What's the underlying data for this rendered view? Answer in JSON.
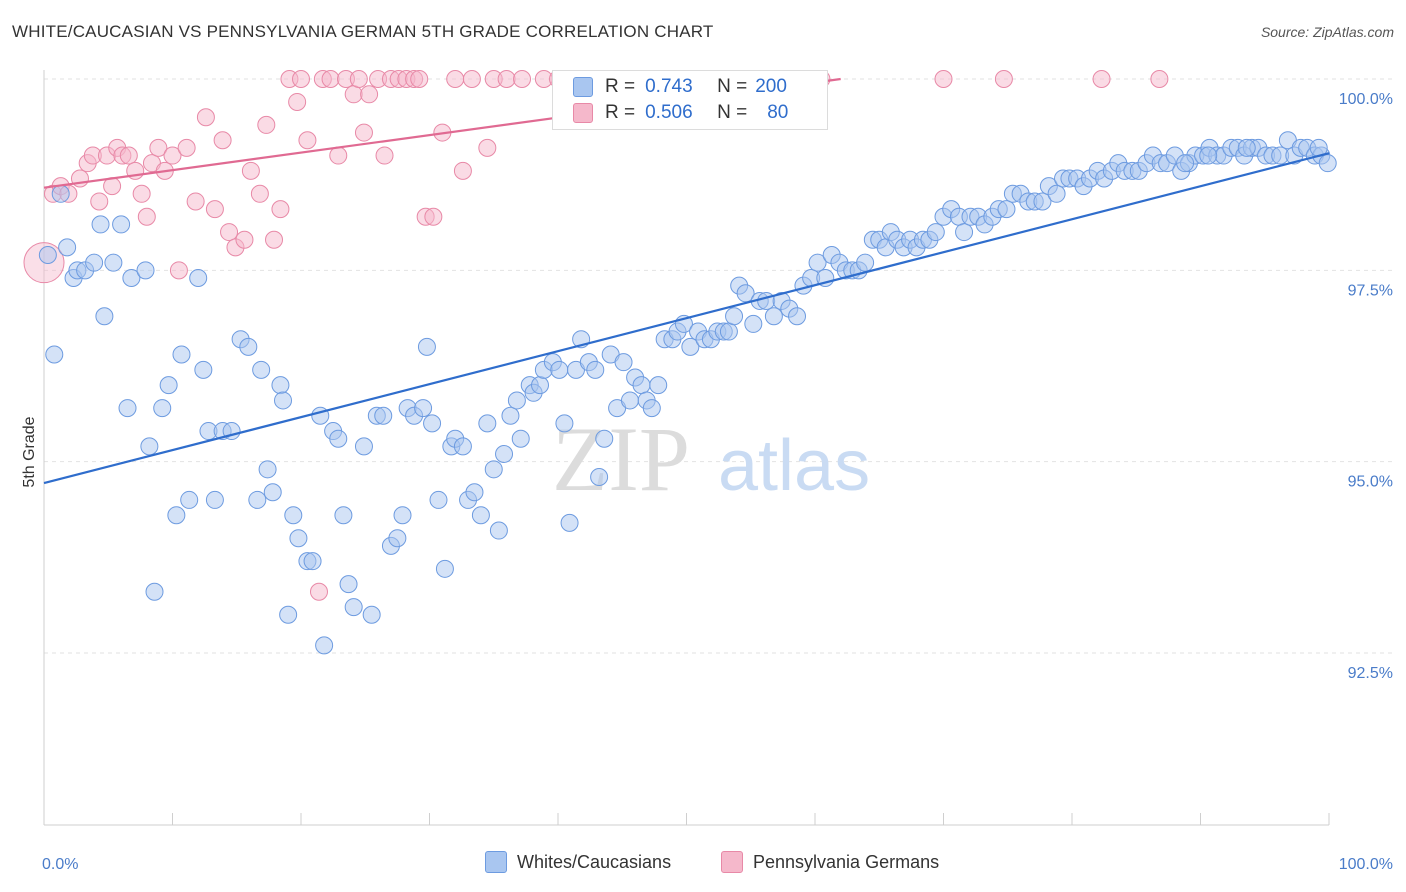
{
  "header": {
    "title": "WHITE/CAUCASIAN VS PENNSYLVANIA GERMAN 5TH GRADE CORRELATION CHART",
    "source": "Source: ZipAtlas.com"
  },
  "watermark": {
    "zip": "ZIP",
    "atlas": "atlas"
  },
  "legend": {
    "r_label": "R =",
    "n_label": "N =",
    "rows": [
      {
        "r": "0.743",
        "n": "200",
        "color": "#a9c6f0",
        "border": "#6d9be0"
      },
      {
        "r": "0.506",
        "n": "80",
        "color": "#f5b8cb",
        "border": "#e889a7"
      }
    ]
  },
  "bottom_legend": [
    {
      "label": "Whites/Caucasians",
      "color": "#a9c6f0",
      "border": "#6d9be0"
    },
    {
      "label": "Pennsylvania Germans",
      "color": "#f5b8cb",
      "border": "#e889a7"
    }
  ],
  "chart_data": {
    "type": "scatter",
    "title": "WHITE/CAUCASIAN VS PENNSYLVANIA GERMAN 5TH GRADE CORRELATION CHART",
    "xlabel": "",
    "ylabel": "5th Grade",
    "xlim": [
      0,
      100
    ],
    "ylim": [
      90.0,
      100.5
    ],
    "x_ticks": [
      {
        "value": 0,
        "label": "0.0%"
      },
      {
        "value": 100,
        "label": "100.0%"
      }
    ],
    "y_ticks": [
      {
        "value": 92.5,
        "label": "92.5%"
      },
      {
        "value": 95.0,
        "label": "95.0%"
      },
      {
        "value": 97.5,
        "label": "97.5%"
      },
      {
        "value": 100.0,
        "label": "100.0%"
      }
    ],
    "grid": true,
    "series": [
      {
        "name": "Whites/Caucasians",
        "color": "#a9c6f0",
        "stroke": "#6d9be0",
        "line_color": "#2f6dcc",
        "trend": [
          [
            0,
            94.72
          ],
          [
            100,
            99.03
          ]
        ],
        "points": [
          [
            0.3,
            97.7
          ],
          [
            0.8,
            96.4
          ],
          [
            1.3,
            98.5
          ],
          [
            1.8,
            97.8
          ],
          [
            2.3,
            97.4
          ],
          [
            2.6,
            97.5
          ],
          [
            3.2,
            97.5
          ],
          [
            3.9,
            97.6
          ],
          [
            4.4,
            98.1
          ],
          [
            4.7,
            96.9
          ],
          [
            5.4,
            97.6
          ],
          [
            6.0,
            98.1
          ],
          [
            6.5,
            95.7
          ],
          [
            6.8,
            97.4
          ],
          [
            7.9,
            97.5
          ],
          [
            8.2,
            95.2
          ],
          [
            8.6,
            93.3
          ],
          [
            9.2,
            95.7
          ],
          [
            9.7,
            96.0
          ],
          [
            10.3,
            94.3
          ],
          [
            10.7,
            96.4
          ],
          [
            11.3,
            94.5
          ],
          [
            12.0,
            97.4
          ],
          [
            12.4,
            96.2
          ],
          [
            12.8,
            95.4
          ],
          [
            13.3,
            94.5
          ],
          [
            13.9,
            95.4
          ],
          [
            14.6,
            95.4
          ],
          [
            15.3,
            96.6
          ],
          [
            15.9,
            96.5
          ],
          [
            16.6,
            94.5
          ],
          [
            16.9,
            96.2
          ],
          [
            17.4,
            94.9
          ],
          [
            17.8,
            94.6
          ],
          [
            18.4,
            96.0
          ],
          [
            18.6,
            95.8
          ],
          [
            19.0,
            93.0
          ],
          [
            19.4,
            94.3
          ],
          [
            19.8,
            94.0
          ],
          [
            20.5,
            93.7
          ],
          [
            20.9,
            93.7
          ],
          [
            21.5,
            95.6
          ],
          [
            21.8,
            92.6
          ],
          [
            22.5,
            95.4
          ],
          [
            22.9,
            95.3
          ],
          [
            23.3,
            94.3
          ],
          [
            23.7,
            93.4
          ],
          [
            24.1,
            93.1
          ],
          [
            24.9,
            95.2
          ],
          [
            25.5,
            93.0
          ],
          [
            25.9,
            95.6
          ],
          [
            26.4,
            95.6
          ],
          [
            27.0,
            93.9
          ],
          [
            27.5,
            94.0
          ],
          [
            27.9,
            94.3
          ],
          [
            28.3,
            95.7
          ],
          [
            28.8,
            95.6
          ],
          [
            29.5,
            95.7
          ],
          [
            29.8,
            96.5
          ],
          [
            30.2,
            95.5
          ],
          [
            30.7,
            94.5
          ],
          [
            31.2,
            93.6
          ],
          [
            31.7,
            95.2
          ],
          [
            32.0,
            95.3
          ],
          [
            32.6,
            95.2
          ],
          [
            33.0,
            94.5
          ],
          [
            33.5,
            94.6
          ],
          [
            34.0,
            94.3
          ],
          [
            34.5,
            95.5
          ],
          [
            35.0,
            94.9
          ],
          [
            35.4,
            94.1
          ],
          [
            35.8,
            95.1
          ],
          [
            36.3,
            95.6
          ],
          [
            36.8,
            95.8
          ],
          [
            37.1,
            95.3
          ],
          [
            37.8,
            96.0
          ],
          [
            38.1,
            95.9
          ],
          [
            38.6,
            96.0
          ],
          [
            38.9,
            96.2
          ],
          [
            39.6,
            96.3
          ],
          [
            40.1,
            96.2
          ],
          [
            40.5,
            95.5
          ],
          [
            40.9,
            94.2
          ],
          [
            41.4,
            96.2
          ],
          [
            41.8,
            96.6
          ],
          [
            42.4,
            96.3
          ],
          [
            42.9,
            96.2
          ],
          [
            43.2,
            94.8
          ],
          [
            43.6,
            95.3
          ],
          [
            44.1,
            96.4
          ],
          [
            44.6,
            95.7
          ],
          [
            45.1,
            96.3
          ],
          [
            45.6,
            95.8
          ],
          [
            46.0,
            96.1
          ],
          [
            46.5,
            96.0
          ],
          [
            46.9,
            95.8
          ],
          [
            47.3,
            95.7
          ],
          [
            47.8,
            96.0
          ],
          [
            48.3,
            96.6
          ],
          [
            48.9,
            96.6
          ],
          [
            49.3,
            96.7
          ],
          [
            49.8,
            96.8
          ],
          [
            50.3,
            96.5
          ],
          [
            50.9,
            96.7
          ],
          [
            51.4,
            96.6
          ],
          [
            51.9,
            96.6
          ],
          [
            52.4,
            96.7
          ],
          [
            52.9,
            96.7
          ],
          [
            53.3,
            96.7
          ],
          [
            53.7,
            96.9
          ],
          [
            54.1,
            97.3
          ],
          [
            54.6,
            97.2
          ],
          [
            55.2,
            96.8
          ],
          [
            55.7,
            97.1
          ],
          [
            56.2,
            97.1
          ],
          [
            56.8,
            96.9
          ],
          [
            57.4,
            97.1
          ],
          [
            58.0,
            97.0
          ],
          [
            58.6,
            96.9
          ],
          [
            59.1,
            97.3
          ],
          [
            59.7,
            97.4
          ],
          [
            60.2,
            97.6
          ],
          [
            60.8,
            97.4
          ],
          [
            61.3,
            97.7
          ],
          [
            61.9,
            97.6
          ],
          [
            62.4,
            97.5
          ],
          [
            62.9,
            97.5
          ],
          [
            63.4,
            97.5
          ],
          [
            63.9,
            97.6
          ],
          [
            64.5,
            97.9
          ],
          [
            65.0,
            97.9
          ],
          [
            65.5,
            97.8
          ],
          [
            65.9,
            98.0
          ],
          [
            66.4,
            97.9
          ],
          [
            66.9,
            97.8
          ],
          [
            67.4,
            97.9
          ],
          [
            67.9,
            97.8
          ],
          [
            68.4,
            97.9
          ],
          [
            68.9,
            97.9
          ],
          [
            69.4,
            98.0
          ],
          [
            70.0,
            98.2
          ],
          [
            70.6,
            98.3
          ],
          [
            71.2,
            98.2
          ],
          [
            71.6,
            98.0
          ],
          [
            72.1,
            98.2
          ],
          [
            72.7,
            98.2
          ],
          [
            73.2,
            98.1
          ],
          [
            73.8,
            98.2
          ],
          [
            74.3,
            98.3
          ],
          [
            74.9,
            98.3
          ],
          [
            75.4,
            98.5
          ],
          [
            76.0,
            98.5
          ],
          [
            76.6,
            98.4
          ],
          [
            77.1,
            98.4
          ],
          [
            77.7,
            98.4
          ],
          [
            78.2,
            98.6
          ],
          [
            78.8,
            98.5
          ],
          [
            79.3,
            98.7
          ],
          [
            79.8,
            98.7
          ],
          [
            80.4,
            98.7
          ],
          [
            80.9,
            98.6
          ],
          [
            81.4,
            98.7
          ],
          [
            82.0,
            98.8
          ],
          [
            82.5,
            98.7
          ],
          [
            83.1,
            98.8
          ],
          [
            83.6,
            98.9
          ],
          [
            84.1,
            98.8
          ],
          [
            84.7,
            98.8
          ],
          [
            85.2,
            98.8
          ],
          [
            85.8,
            98.9
          ],
          [
            86.3,
            99.0
          ],
          [
            86.9,
            98.9
          ],
          [
            87.4,
            98.9
          ],
          [
            88.0,
            99.0
          ],
          [
            88.5,
            98.8
          ],
          [
            89.1,
            98.9
          ],
          [
            89.6,
            99.0
          ],
          [
            90.2,
            99.0
          ],
          [
            90.7,
            99.1
          ],
          [
            91.3,
            99.0
          ],
          [
            91.8,
            99.0
          ],
          [
            92.4,
            99.1
          ],
          [
            92.9,
            99.1
          ],
          [
            93.4,
            99.0
          ],
          [
            94.0,
            99.1
          ],
          [
            94.5,
            99.1
          ],
          [
            95.1,
            99.0
          ],
          [
            95.6,
            99.0
          ],
          [
            96.2,
            99.0
          ],
          [
            96.8,
            99.2
          ],
          [
            97.3,
            99.0
          ],
          [
            97.8,
            99.1
          ],
          [
            98.3,
            99.1
          ],
          [
            98.9,
            99.0
          ],
          [
            99.4,
            99.0
          ],
          [
            99.9,
            98.9
          ],
          [
            99.2,
            99.1
          ],
          [
            88.8,
            98.9
          ],
          [
            90.6,
            99.0
          ],
          [
            93.6,
            99.1
          ]
        ]
      },
      {
        "name": "Pennsylvania Germans",
        "color": "#f5b8cb",
        "stroke": "#e889a7",
        "line_color": "#e06a92",
        "trend": [
          [
            0,
            98.58
          ],
          [
            62,
            100.0
          ]
        ],
        "points": [
          [
            0.0,
            97.6
          ],
          [
            0.7,
            98.5
          ],
          [
            1.3,
            98.6
          ],
          [
            1.9,
            98.5
          ],
          [
            2.8,
            98.7
          ],
          [
            3.4,
            98.9
          ],
          [
            3.8,
            99.0
          ],
          [
            4.3,
            98.4
          ],
          [
            4.9,
            99.0
          ],
          [
            5.3,
            98.6
          ],
          [
            5.7,
            99.1
          ],
          [
            6.1,
            99.0
          ],
          [
            6.6,
            99.0
          ],
          [
            7.1,
            98.8
          ],
          [
            7.6,
            98.5
          ],
          [
            8.0,
            98.2
          ],
          [
            8.4,
            98.9
          ],
          [
            8.9,
            99.1
          ],
          [
            9.4,
            98.8
          ],
          [
            10.0,
            99.0
          ],
          [
            10.5,
            97.5
          ],
          [
            11.1,
            99.1
          ],
          [
            11.8,
            98.4
          ],
          [
            12.6,
            99.5
          ],
          [
            13.3,
            98.3
          ],
          [
            13.9,
            99.2
          ],
          [
            14.4,
            98.0
          ],
          [
            14.9,
            97.8
          ],
          [
            15.6,
            97.9
          ],
          [
            16.1,
            98.8
          ],
          [
            16.8,
            98.5
          ],
          [
            17.3,
            99.4
          ],
          [
            17.9,
            97.9
          ],
          [
            18.4,
            98.3
          ],
          [
            19.1,
            100.0
          ],
          [
            19.7,
            99.7
          ],
          [
            20.0,
            100.0
          ],
          [
            20.5,
            99.2
          ],
          [
            21.4,
            93.3
          ],
          [
            21.7,
            100.0
          ],
          [
            22.3,
            100.0
          ],
          [
            22.9,
            99.0
          ],
          [
            23.5,
            100.0
          ],
          [
            24.1,
            99.8
          ],
          [
            24.5,
            100.0
          ],
          [
            24.9,
            99.3
          ],
          [
            25.3,
            99.8
          ],
          [
            26.0,
            100.0
          ],
          [
            26.5,
            99.0
          ],
          [
            27.0,
            100.0
          ],
          [
            27.6,
            100.0
          ],
          [
            28.2,
            100.0
          ],
          [
            28.8,
            100.0
          ],
          [
            29.2,
            100.0
          ],
          [
            29.7,
            98.2
          ],
          [
            30.3,
            98.2
          ],
          [
            31.0,
            99.3
          ],
          [
            32.0,
            100.0
          ],
          [
            32.6,
            98.8
          ],
          [
            33.3,
            100.0
          ],
          [
            34.5,
            99.1
          ],
          [
            35.0,
            100.0
          ],
          [
            36.0,
            100.0
          ],
          [
            37.2,
            100.0
          ],
          [
            38.9,
            100.0
          ],
          [
            40.0,
            100.0
          ],
          [
            41.2,
            100.0
          ],
          [
            42.3,
            100.0
          ],
          [
            43.5,
            100.0
          ],
          [
            44.6,
            100.0
          ],
          [
            45.5,
            100.0
          ],
          [
            47.1,
            100.0
          ],
          [
            48.4,
            100.0
          ],
          [
            50.6,
            100.0
          ],
          [
            55.0,
            100.0
          ],
          [
            60.5,
            100.0
          ],
          [
            70.0,
            100.0
          ],
          [
            74.7,
            100.0
          ],
          [
            82.3,
            100.0
          ],
          [
            86.8,
            100.0
          ]
        ]
      }
    ]
  }
}
